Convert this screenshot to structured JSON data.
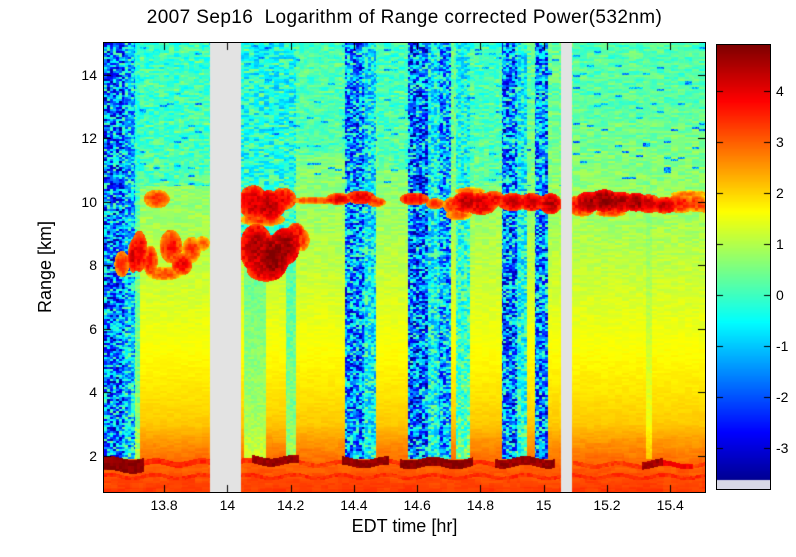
{
  "title": "2007 Sep16  Logarithm of Range corrected Power(532nm)",
  "axes": {
    "xlabel": "EDT time [hr]",
    "ylabel": "Range [km]",
    "xlim": [
      13.61,
      15.51
    ],
    "ylim": [
      0.85,
      15.0
    ],
    "xtick_values": [
      13.8,
      14,
      14.2,
      14.4,
      14.6,
      14.8,
      15,
      15.2,
      15.4
    ],
    "xtick_labels": [
      "13.8",
      "14",
      "14.2",
      "14.4",
      "14.6",
      "14.8",
      "15",
      "15.2",
      "15.4"
    ],
    "ytick_values": [
      2,
      4,
      6,
      8,
      10,
      12,
      14
    ],
    "ytick_labels": [
      "2",
      "4",
      "6",
      "8",
      "10",
      "12",
      "14"
    ]
  },
  "colorbar": {
    "tick_values": [
      4,
      3,
      2,
      1,
      0,
      -1,
      -2,
      -3
    ],
    "tick_labels": [
      "4",
      "3",
      "2",
      "1",
      "0",
      "-1",
      "-2",
      "-3"
    ],
    "top_value": 4.9,
    "bottom_value": -3.63,
    "under_color": "#d9d9e6"
  },
  "chart_data": {
    "type": "heatmap",
    "colormap": "jet",
    "x_axis_hr": [
      13.61,
      15.51
    ],
    "y_axis_km": [
      0.85,
      15.0
    ],
    "value_range": [
      -3.8,
      4.9
    ],
    "gap_color": "#e3e3e3",
    "background_profile": {
      "range_km": [
        15,
        12,
        10,
        8,
        6,
        4,
        3,
        2.5,
        2.0,
        1.6,
        1.3,
        0.85
      ],
      "value": [
        0.25,
        0.45,
        0.75,
        1.1,
        1.5,
        1.85,
        2.1,
        2.5,
        2.8,
        3.0,
        3.15,
        3.35
      ]
    },
    "data_gaps_hr": [
      [
        13.944,
        14.041
      ],
      [
        15.052,
        15.088
      ]
    ],
    "attenuated_columns": [
      {
        "t": [
          13.61,
          13.672
        ],
        "mean": -1.6,
        "amp": 2.0,
        "mix": 1.0
      },
      {
        "t": [
          13.672,
          13.706
        ],
        "mean": -1.1,
        "amp": 1.6,
        "mix": 0.95
      },
      {
        "t": [
          13.706,
          13.722
        ],
        "mean": -0.3,
        "amp": 0.8,
        "mix": 0.6
      },
      {
        "t": [
          14.05,
          14.12
        ],
        "mean": -0.35,
        "amp": 0.5,
        "mix": 0.5,
        "rmax": 8.2
      },
      {
        "t": [
          14.185,
          14.215
        ],
        "mean": -0.45,
        "amp": 0.6,
        "mix": 0.6,
        "rmax": 8.2
      },
      {
        "t": [
          14.37,
          14.43
        ],
        "mean": -1.5,
        "amp": 1.9,
        "mix": 1.0
      },
      {
        "t": [
          14.43,
          14.468
        ],
        "mean": -0.9,
        "amp": 1.4,
        "mix": 0.85
      },
      {
        "t": [
          14.571,
          14.632
        ],
        "mean": -1.7,
        "amp": 2.0,
        "mix": 1.0
      },
      {
        "t": [
          14.632,
          14.668
        ],
        "mean": -0.8,
        "amp": 1.3,
        "mix": 0.85
      },
      {
        "t": [
          14.668,
          14.705
        ],
        "mean": -1.4,
        "amp": 1.8,
        "mix": 0.95
      },
      {
        "t": [
          14.72,
          14.765
        ],
        "mean": -0.7,
        "amp": 1.3,
        "mix": 0.7
      },
      {
        "t": [
          14.868,
          14.915
        ],
        "mean": -1.6,
        "amp": 2.0,
        "mix": 1.0
      },
      {
        "t": [
          14.915,
          14.945
        ],
        "mean": -0.8,
        "amp": 1.3,
        "mix": 0.8
      },
      {
        "t": [
          14.972,
          15.012
        ],
        "mean": -1.5,
        "amp": 1.9,
        "mix": 1.0
      },
      {
        "t": [
          15.322,
          15.34
        ],
        "mean": 0.3,
        "amp": 0.4,
        "mix": 0.3
      }
    ],
    "noise_regions": [
      {
        "t": [
          13.61,
          13.955
        ],
        "rmin": 10.5,
        "mean": -0.6,
        "amp": 1.4,
        "mix": 0.35
      },
      {
        "t": [
          14.042,
          14.215
        ],
        "rmin": 8.2,
        "mean": -0.9,
        "amp": 1.6,
        "mix": 0.55
      },
      {
        "t": [
          14.215,
          14.37
        ],
        "rmin": 11.5,
        "mean": -0.4,
        "amp": 1.0,
        "mix": 0.3
      },
      {
        "t": [
          14.47,
          14.575
        ],
        "rmin": 11.0,
        "mean": -0.5,
        "amp": 1.2,
        "mix": 0.35
      },
      {
        "t": [
          14.75,
          14.87
        ],
        "rmin": 10.5,
        "mean": -0.5,
        "amp": 1.2,
        "mix": 0.35
      },
      {
        "t": [
          15.09,
          15.51
        ],
        "rmin": 12.5,
        "mean": -0.2,
        "amp": 0.7,
        "mix": 0.25
      }
    ],
    "clouds": [
      {
        "t": 13.665,
        "r": 8.05,
        "dt": 0.02,
        "dr": 0.35,
        "v": 3.6
      },
      {
        "t": 13.7,
        "r": 8.3,
        "dt": 0.013,
        "dr": 0.45,
        "v": 4.2
      },
      {
        "t": 13.72,
        "r": 8.45,
        "dt": 0.022,
        "dr": 0.55,
        "v": 4.1
      },
      {
        "t": 13.755,
        "r": 8.15,
        "dt": 0.02,
        "dr": 0.4,
        "v": 3.7
      },
      {
        "t": 13.775,
        "r": 10.1,
        "dt": 0.035,
        "dr": 0.25,
        "v": 3.4
      },
      {
        "t": 13.82,
        "r": 8.6,
        "dt": 0.03,
        "dr": 0.45,
        "v": 3.7
      },
      {
        "t": 13.855,
        "r": 8.05,
        "dt": 0.028,
        "dr": 0.3,
        "v": 3.9
      },
      {
        "t": 13.885,
        "r": 8.5,
        "dt": 0.025,
        "dr": 0.35,
        "v": 3.4
      },
      {
        "t": 13.8,
        "r": 7.75,
        "dt": 0.05,
        "dr": 0.18,
        "v": 3.2
      },
      {
        "t": 13.92,
        "r": 8.7,
        "dt": 0.02,
        "dr": 0.2,
        "v": 3.1
      },
      {
        "t": 14.08,
        "r": 10.0,
        "dt": 0.04,
        "dr": 0.45,
        "v": 4.2
      },
      {
        "t": 14.13,
        "r": 9.9,
        "dt": 0.045,
        "dr": 0.4,
        "v": 4.4
      },
      {
        "t": 14.175,
        "r": 10.1,
        "dt": 0.035,
        "dr": 0.3,
        "v": 3.9
      },
      {
        "t": 14.11,
        "r": 9.45,
        "dt": 0.06,
        "dr": 0.18,
        "v": 3.4
      },
      {
        "t": 14.09,
        "r": 8.55,
        "dt": 0.045,
        "dr": 0.65,
        "v": 4.5
      },
      {
        "t": 14.14,
        "r": 8.25,
        "dt": 0.045,
        "dr": 0.6,
        "v": 4.9
      },
      {
        "t": 14.18,
        "r": 8.6,
        "dt": 0.04,
        "dr": 0.5,
        "v": 4.7
      },
      {
        "t": 14.12,
        "r": 7.85,
        "dt": 0.05,
        "dr": 0.3,
        "v": 4.3
      },
      {
        "t": 14.215,
        "r": 9.0,
        "dt": 0.025,
        "dr": 0.3,
        "v": 3.9
      },
      {
        "t": 14.235,
        "r": 8.8,
        "dt": 0.02,
        "dr": 0.3,
        "v": 3.3
      },
      {
        "t": 14.28,
        "r": 10.05,
        "dt": 0.075,
        "dr": 0.1,
        "v": 3.3
      },
      {
        "t": 14.35,
        "r": 10.1,
        "dt": 0.035,
        "dr": 0.16,
        "v": 4.0
      },
      {
        "t": 14.42,
        "r": 10.15,
        "dt": 0.04,
        "dr": 0.18,
        "v": 4.1
      },
      {
        "t": 14.47,
        "r": 10.0,
        "dt": 0.025,
        "dr": 0.13,
        "v": 3.5
      },
      {
        "t": 14.59,
        "r": 10.1,
        "dt": 0.04,
        "dr": 0.17,
        "v": 4.0
      },
      {
        "t": 14.655,
        "r": 9.95,
        "dt": 0.025,
        "dr": 0.15,
        "v": 3.5
      },
      {
        "t": 14.71,
        "r": 9.9,
        "dt": 0.025,
        "dr": 0.22,
        "v": 3.5
      },
      {
        "t": 14.755,
        "r": 10.0,
        "dt": 0.04,
        "dr": 0.28,
        "v": 4.3
      },
      {
        "t": 14.8,
        "r": 9.95,
        "dt": 0.045,
        "dr": 0.3,
        "v": 4.2
      },
      {
        "t": 14.73,
        "r": 9.6,
        "dt": 0.035,
        "dr": 0.15,
        "v": 3.1
      },
      {
        "t": 14.765,
        "r": 10.35,
        "dt": 0.04,
        "dr": 0.1,
        "v": 3.0
      },
      {
        "t": 14.84,
        "r": 10.1,
        "dt": 0.03,
        "dr": 0.22,
        "v": 3.9
      },
      {
        "t": 14.9,
        "r": 10.0,
        "dt": 0.04,
        "dr": 0.24,
        "v": 4.2
      },
      {
        "t": 14.96,
        "r": 10.0,
        "dt": 0.035,
        "dr": 0.24,
        "v": 4.3
      },
      {
        "t": 15.02,
        "r": 9.95,
        "dt": 0.03,
        "dr": 0.28,
        "v": 4.4
      },
      {
        "t": 15.1,
        "r": 9.9,
        "dt": 0.02,
        "dr": 0.25,
        "v": 3.8
      },
      {
        "t": 15.14,
        "r": 10.0,
        "dt": 0.035,
        "dr": 0.28,
        "v": 4.6
      },
      {
        "t": 15.19,
        "r": 10.05,
        "dt": 0.04,
        "dr": 0.3,
        "v": 4.8
      },
      {
        "t": 15.24,
        "r": 10.0,
        "dt": 0.04,
        "dr": 0.28,
        "v": 4.5
      },
      {
        "t": 15.29,
        "r": 10.0,
        "dt": 0.035,
        "dr": 0.25,
        "v": 4.6
      },
      {
        "t": 15.33,
        "r": 9.95,
        "dt": 0.035,
        "dr": 0.25,
        "v": 4.2
      },
      {
        "t": 15.38,
        "r": 9.9,
        "dt": 0.035,
        "dr": 0.22,
        "v": 4.3
      },
      {
        "t": 15.43,
        "r": 9.95,
        "dt": 0.04,
        "dr": 0.25,
        "v": 3.6
      },
      {
        "t": 15.48,
        "r": 9.95,
        "dt": 0.035,
        "dr": 0.22,
        "v": 3.4
      },
      {
        "t": 15.51,
        "r": 9.9,
        "dt": 0.02,
        "dr": 0.2,
        "v": 3.2
      },
      {
        "t": 15.12,
        "r": 9.7,
        "dt": 0.03,
        "dr": 0.13,
        "v": 3.3
      },
      {
        "t": 15.21,
        "r": 9.65,
        "dt": 0.04,
        "dr": 0.1,
        "v": 3.4
      },
      {
        "t": 15.46,
        "r": 10.25,
        "dt": 0.05,
        "dr": 0.1,
        "v": 3.0
      }
    ],
    "boundary_layer_segments": [
      {
        "t": [
          13.61,
          13.735
        ],
        "r0": 1.72,
        "h": 0.22,
        "v": 4.8
      },
      {
        "t": [
          13.735,
          13.95
        ],
        "r0": 1.78,
        "h": 0.09,
        "v": 3.5
      },
      {
        "t": [
          14.042,
          14.075
        ],
        "r0": 1.8,
        "h": 0.08,
        "v": 3.4
      },
      {
        "t": [
          14.075,
          14.225
        ],
        "r0": 1.85,
        "h": 0.13,
        "v": 4.7
      },
      {
        "t": [
          14.225,
          14.36
        ],
        "r0": 1.75,
        "h": 0.07,
        "v": 3.3
      },
      {
        "t": [
          14.36,
          14.51
        ],
        "r0": 1.8,
        "h": 0.13,
        "v": 4.7
      },
      {
        "t": [
          14.51,
          14.545
        ],
        "r0": 1.78,
        "h": 0.07,
        "v": 3.4
      },
      {
        "t": [
          14.545,
          14.775
        ],
        "r0": 1.78,
        "h": 0.14,
        "v": 4.8
      },
      {
        "t": [
          14.775,
          14.845
        ],
        "r0": 1.75,
        "h": 0.07,
        "v": 3.4
      },
      {
        "t": [
          14.845,
          15.035
        ],
        "r0": 1.8,
        "h": 0.14,
        "v": 4.7
      },
      {
        "t": [
          15.09,
          15.31
        ],
        "r0": 1.72,
        "h": 0.07,
        "v": 3.3
      },
      {
        "t": [
          15.31,
          15.375
        ],
        "r0": 1.75,
        "h": 0.12,
        "v": 4.6
      },
      {
        "t": [
          15.375,
          15.47
        ],
        "r0": 1.72,
        "h": 0.08,
        "v": 3.9
      },
      {
        "t": [
          15.47,
          15.51
        ],
        "r0": 1.7,
        "h": 0.06,
        "v": 3.3
      },
      {
        "t": [
          13.61,
          15.51
        ],
        "r0": 1.35,
        "h": 0.06,
        "v": 3.45
      }
    ]
  }
}
